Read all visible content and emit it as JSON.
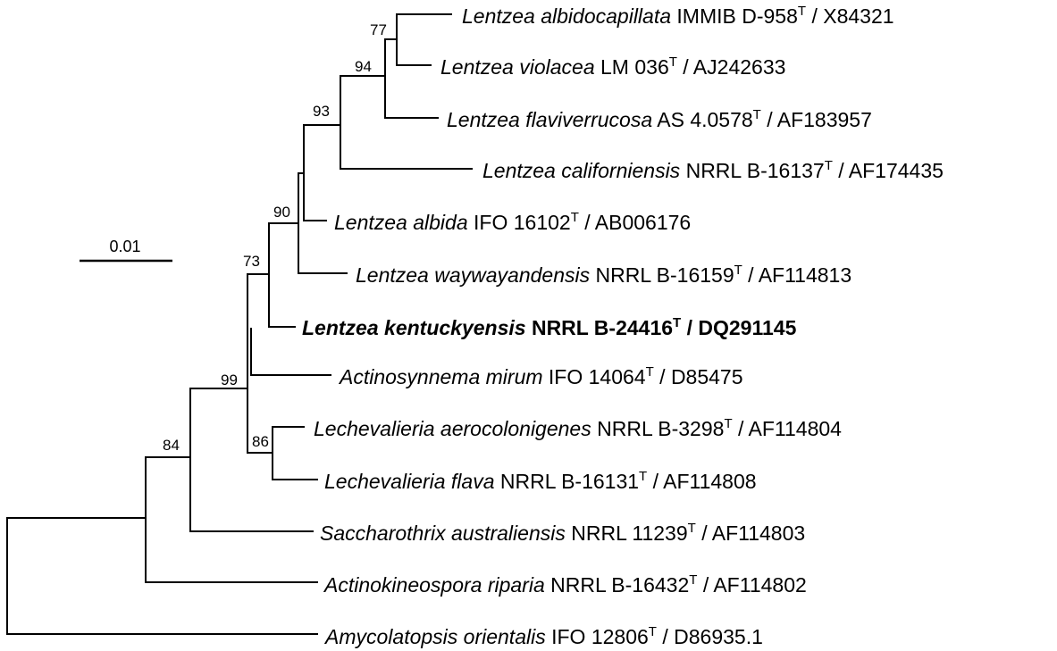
{
  "scale_bar": {
    "label": "0.01"
  },
  "taxa": [
    {
      "genus_species": "Lentzea albidocapillata",
      "strain": "IMMIB D-958",
      "type_mark": "T",
      "accession": "X84321",
      "bold": false
    },
    {
      "genus_species": "Lentzea violacea",
      "strain": "LM 036",
      "type_mark": "T",
      "accession": "AJ242633",
      "bold": false
    },
    {
      "genus_species": "Lentzea flaviverrucosa",
      "strain": "AS 4.0578",
      "type_mark": "T",
      "accession": "AF183957",
      "bold": false
    },
    {
      "genus_species": "Lentzea californiensis",
      "strain": "NRRL B-16137",
      "type_mark": "T",
      "accession": "AF174435",
      "bold": false
    },
    {
      "genus_species": "Lentzea albida",
      "strain": "IFO 16102",
      "type_mark": "T",
      "accession": "AB006176",
      "bold": false
    },
    {
      "genus_species": "Lentzea waywayandensis",
      "strain": "NRRL B-16159",
      "type_mark": "T",
      "accession": "AF114813",
      "bold": false
    },
    {
      "genus_species": "Lentzea kentuckyensis",
      "strain": "NRRL B-24416",
      "type_mark": "T",
      "accession": "DQ291145",
      "bold": true
    },
    {
      "genus_species": "Actinosynnema mirum",
      "strain": "IFO 14064",
      "type_mark": "T",
      "accession": "D85475",
      "bold": false
    },
    {
      "genus_species": "Lechevalieria aerocolonigenes",
      "strain": "NRRL B-3298",
      "type_mark": "T",
      "accession": "AF114804",
      "bold": false
    },
    {
      "genus_species": "Lechevalieria flava",
      "strain": "NRRL B-16131",
      "type_mark": "T",
      "accession": "AF114808",
      "bold": false
    },
    {
      "genus_species": "Saccharothrix australiensis",
      "strain": "NRRL 11239",
      "type_mark": "T",
      "accession": "AF114803",
      "bold": false
    },
    {
      "genus_species": "Actinokineospora riparia",
      "strain": "NRRL B-16432",
      "type_mark": "T",
      "accession": "AF114802",
      "bold": false
    },
    {
      "genus_species": "Amycolatopsis orientalis",
      "strain": "IFO 12806",
      "type_mark": "T",
      "accession": "D86935.1",
      "bold": false
    }
  ],
  "bootstrap": [
    "77",
    "94",
    "93",
    "90",
    "73",
    "99",
    "86",
    "84"
  ]
}
